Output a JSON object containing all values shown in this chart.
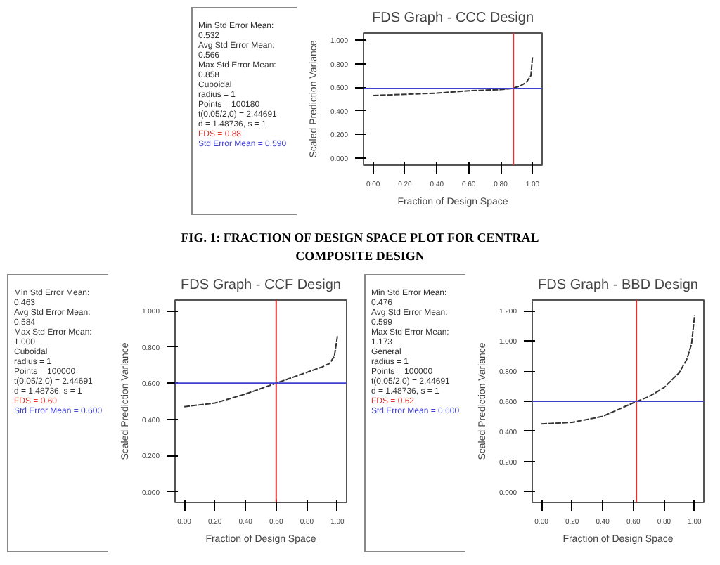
{
  "chart_data": [
    {
      "type": "line",
      "title": "FDS Graph - CCC Design",
      "xlabel": "Fraction of Design Space",
      "ylabel": "Scaled Prediction Variance",
      "annotations": [
        "Min Std Error Mean: 0.532",
        "Avg Std Error Mean: 0.566",
        "Max Std Error Mean: 0.858",
        "Cuboidal",
        "radius = 1",
        "Points = 100180",
        "t(0.05/2,0) = 2.44691",
        "d = 1.48736, s = 1"
      ],
      "x": [
        0,
        0.2,
        0.4,
        0.6,
        0.8,
        0.87,
        0.92,
        0.96,
        0.99,
        1.0
      ],
      "series": [
        {
          "color": "#333333",
          "values": [
            0.53,
            0.54,
            0.55,
            0.57,
            0.58,
            0.59,
            0.61,
            0.64,
            0.7,
            0.86
          ]
        }
      ],
      "ref_lines": [
        {
          "axis": "x",
          "value": 0.88,
          "label": "FDS = 0.88",
          "color": "#e03030"
        },
        {
          "axis": "y",
          "value": 0.59,
          "label": "Std Error Mean = 0.590",
          "color": "#4040d0"
        }
      ],
      "xlim": [
        -0.06,
        1.06
      ],
      "ylim": [
        -0.06,
        1.06
      ],
      "xticks": [
        {
          "value": 0,
          "label": "0.00"
        },
        {
          "value": 0.2,
          "label": "0.20"
        },
        {
          "value": 0.4,
          "label": "0.40"
        },
        {
          "value": 0.6,
          "label": "0.60"
        },
        {
          "value": 0.8,
          "label": "0.80"
        },
        {
          "value": 1,
          "label": "1.00"
        }
      ],
      "yticks": [
        {
          "value": 0,
          "label": "0.000"
        },
        {
          "value": 0.2,
          "label": "0.200"
        },
        {
          "value": 0.4,
          "label": "0.400"
        },
        {
          "value": 0.6,
          "label": "0.600"
        },
        {
          "value": 0.8,
          "label": "0.800"
        },
        {
          "value": 1,
          "label": "1.000"
        }
      ],
      "grid": false,
      "line_style": "dashed",
      "marker": "none"
    },
    {
      "type": "other",
      "title": "FIG. 1: FRACTION OF DESIGN SPACE PLOT FOR CENTRAL COMPOSITE DESIGN"
    },
    {
      "type": "line",
      "title": "FDS Graph - CCF Design",
      "xlabel": "Fraction of Design Space",
      "ylabel": "Scaled Prediction Variance",
      "annotations": [
        "Min Std Error Mean: 0.463",
        "Avg Std Error Mean: 0.584",
        "Max Std Error Mean: 1.000",
        "Cuboidal",
        "radius = 1",
        "Points = 100000",
        "t(0.05/2,0) = 2.44691",
        "d = 1.48736, s = 1"
      ],
      "x": [
        0,
        0.2,
        0.4,
        0.6,
        0.8,
        0.9,
        0.95,
        0.98,
        1.0
      ],
      "series": [
        {
          "color": "#333333",
          "values": [
            0.47,
            0.49,
            0.54,
            0.6,
            0.66,
            0.69,
            0.71,
            0.75,
            0.86
          ]
        }
      ],
      "ref_lines": [
        {
          "axis": "x",
          "value": 0.6,
          "label": "FDS = 0.60",
          "color": "#e03030"
        },
        {
          "axis": "y",
          "value": 0.6,
          "label": "Std Error Mean = 0.600",
          "color": "#4040d0"
        }
      ],
      "xlim": [
        -0.06,
        1.06
      ],
      "ylim": [
        -0.06,
        1.06
      ],
      "xticks": [
        {
          "value": 0,
          "label": "0.00"
        },
        {
          "value": 0.2,
          "label": "0.20"
        },
        {
          "value": 0.4,
          "label": "0.40"
        },
        {
          "value": 0.6,
          "label": "0.60"
        },
        {
          "value": 0.8,
          "label": "0.80"
        },
        {
          "value": 1,
          "label": "1.00"
        }
      ],
      "yticks": [
        {
          "value": 0,
          "label": "0.000"
        },
        {
          "value": 0.2,
          "label": "0.200"
        },
        {
          "value": 0.4,
          "label": "0.400"
        },
        {
          "value": 0.6,
          "label": "0.600"
        },
        {
          "value": 0.8,
          "label": "0.800"
        },
        {
          "value": 1,
          "label": "1.000"
        }
      ],
      "grid": false,
      "line_style": "dashed",
      "marker": "none"
    },
    {
      "type": "line",
      "title": "FDS Graph - BBD Design",
      "xlabel": "Fraction of Design Space",
      "ylabel": "Scaled Prediction Variance",
      "annotations": [
        "Min Std Error Mean: 0.476",
        "Avg Std Error Mean: 0.599",
        "Max Std Error Mean: 1.173",
        "General",
        "radius = 1",
        "Points = 100000",
        "t(0.05/2,0) = 2.44691",
        "d = 1.48736, s = 1"
      ],
      "x": [
        0,
        0.2,
        0.4,
        0.6,
        0.7,
        0.8,
        0.9,
        0.95,
        0.98,
        1.0
      ],
      "series": [
        {
          "color": "#333333",
          "values": [
            0.45,
            0.46,
            0.5,
            0.59,
            0.63,
            0.69,
            0.79,
            0.88,
            0.98,
            1.17
          ]
        }
      ],
      "ref_lines": [
        {
          "axis": "x",
          "value": 0.62,
          "label": "FDS = 0.62",
          "color": "#e03030"
        },
        {
          "axis": "y",
          "value": 0.6,
          "label": "Std Error Mean = 0.600",
          "color": "#4040d0"
        }
      ],
      "xlim": [
        -0.06,
        1.06
      ],
      "ylim": [
        -0.07,
        1.27
      ],
      "xticks": [
        {
          "value": 0,
          "label": "0.00"
        },
        {
          "value": 0.2,
          "label": "0.20"
        },
        {
          "value": 0.4,
          "label": "0.40"
        },
        {
          "value": 0.6,
          "label": "0.60"
        },
        {
          "value": 0.8,
          "label": "0.80"
        },
        {
          "value": 1,
          "label": "1.00"
        }
      ],
      "yticks": [
        {
          "value": 0,
          "label": "0.000"
        },
        {
          "value": 0.2,
          "label": "0.200"
        },
        {
          "value": 0.4,
          "label": "0.400"
        },
        {
          "value": 0.6,
          "label": "0.600"
        },
        {
          "value": 0.8,
          "label": "0.800"
        },
        {
          "value": 1,
          "label": "1.000"
        },
        {
          "value": 1.2,
          "label": "1.200"
        }
      ],
      "grid": false,
      "line_style": "dashed",
      "marker": "none"
    }
  ]
}
